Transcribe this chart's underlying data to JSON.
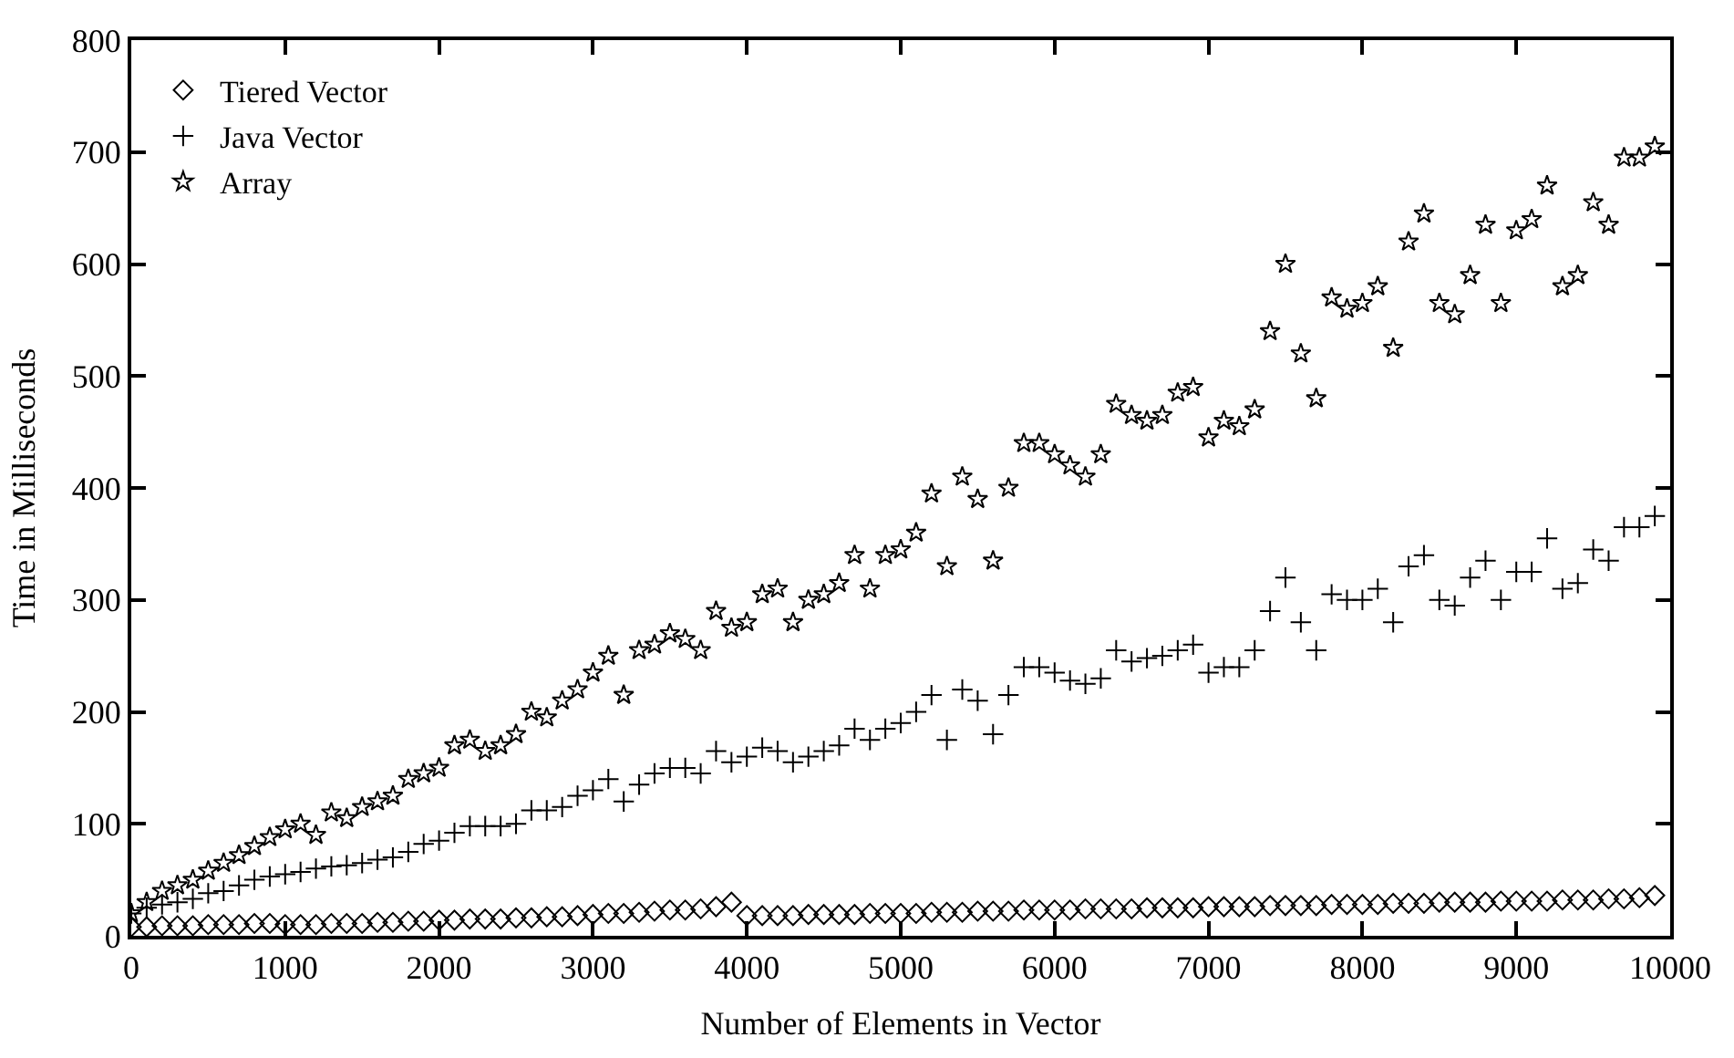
{
  "chart_data": {
    "type": "scatter",
    "xlabel": "Number of Elements in Vector",
    "ylabel": "Time in Milliseconds",
    "x": [
      0,
      100,
      200,
      300,
      400,
      500,
      600,
      700,
      800,
      900,
      1000,
      1100,
      1200,
      1300,
      1400,
      1500,
      1600,
      1700,
      1800,
      1900,
      2000,
      2100,
      2200,
      2300,
      2400,
      2500,
      2600,
      2700,
      2800,
      2900,
      3000,
      3100,
      3200,
      3300,
      3400,
      3500,
      3600,
      3700,
      3800,
      3900,
      4000,
      4100,
      4200,
      4300,
      4400,
      4500,
      4600,
      4700,
      4800,
      4900,
      5000,
      5100,
      5200,
      5300,
      5400,
      5500,
      5600,
      5700,
      5800,
      5900,
      6000,
      6100,
      6200,
      6300,
      6400,
      6500,
      6600,
      6700,
      6800,
      6900,
      7000,
      7100,
      7200,
      7300,
      7400,
      7500,
      7600,
      7700,
      7800,
      7900,
      8000,
      8100,
      8200,
      8300,
      8400,
      8500,
      8600,
      8700,
      8800,
      8900,
      9000,
      9100,
      9200,
      9300,
      9400,
      9500,
      9600,
      9700,
      9800,
      9900
    ],
    "series": [
      {
        "name": "Tiered Vector",
        "color": "#000000",
        "marker": "diamond",
        "values": [
          8,
          8,
          9,
          9,
          9,
          10,
          10,
          10,
          11,
          11,
          10,
          10,
          10,
          11,
          11,
          11,
          12,
          12,
          13,
          13,
          14,
          14,
          15,
          15,
          15,
          16,
          16,
          17,
          17,
          18,
          19,
          20,
          20,
          21,
          22,
          23,
          23,
          24,
          26,
          30,
          18,
          18,
          18,
          18,
          19,
          19,
          19,
          19,
          20,
          20,
          20,
          20,
          21,
          21,
          21,
          22,
          22,
          22,
          23,
          23,
          23,
          23,
          24,
          24,
          24,
          24,
          25,
          25,
          25,
          25,
          26,
          26,
          26,
          26,
          27,
          27,
          27,
          27,
          28,
          28,
          28,
          28,
          29,
          29,
          29,
          30,
          30,
          30,
          30,
          31,
          31,
          31,
          31,
          32,
          32,
          32,
          33,
          33,
          34,
          36
        ]
      },
      {
        "name": "Java Vector",
        "color": "#000000",
        "marker": "cross",
        "values": [
          20,
          25,
          28,
          30,
          33,
          38,
          40,
          45,
          50,
          53,
          55,
          57,
          60,
          62,
          63,
          65,
          68,
          70,
          75,
          82,
          85,
          92,
          98,
          98,
          98,
          100,
          112,
          112,
          115,
          125,
          130,
          140,
          120,
          135,
          145,
          150,
          150,
          145,
          165,
          155,
          160,
          168,
          165,
          155,
          160,
          165,
          170,
          185,
          175,
          185,
          190,
          200,
          215,
          175,
          220,
          210,
          180,
          215,
          240,
          240,
          235,
          228,
          225,
          230,
          255,
          245,
          248,
          250,
          255,
          260,
          235,
          240,
          240,
          255,
          290,
          320,
          280,
          255,
          305,
          300,
          300,
          310,
          280,
          330,
          340,
          300,
          295,
          320,
          335,
          300,
          325,
          325,
          355,
          310,
          315,
          345,
          335,
          365,
          365,
          375
        ]
      },
      {
        "name": "Array",
        "color": "#000000",
        "marker": "star",
        "values": [
          20,
          30,
          40,
          45,
          50,
          58,
          65,
          72,
          80,
          88,
          95,
          100,
          90,
          110,
          105,
          115,
          120,
          125,
          140,
          145,
          150,
          170,
          175,
          165,
          170,
          180,
          200,
          195,
          210,
          220,
          235,
          250,
          215,
          255,
          260,
          270,
          265,
          255,
          290,
          275,
          280,
          305,
          310,
          280,
          300,
          305,
          315,
          340,
          310,
          340,
          345,
          360,
          395,
          330,
          410,
          390,
          335,
          400,
          440,
          440,
          430,
          420,
          410,
          430,
          475,
          465,
          460,
          465,
          485,
          490,
          445,
          460,
          455,
          470,
          540,
          600,
          520,
          480,
          570,
          560,
          565,
          580,
          525,
          620,
          645,
          565,
          555,
          590,
          635,
          565,
          630,
          640,
          670,
          580,
          590,
          655,
          635,
          695,
          695,
          705
        ]
      }
    ],
    "xlim": [
      0,
      10000
    ],
    "xticks": [
      0,
      1000,
      2000,
      3000,
      4000,
      5000,
      6000,
      7000,
      8000,
      9000,
      10000
    ],
    "ylim": [
      0,
      800
    ],
    "yticks": [
      0,
      100,
      200,
      300,
      400,
      500,
      600,
      700,
      800
    ],
    "grid": false,
    "legend": "top left"
  }
}
